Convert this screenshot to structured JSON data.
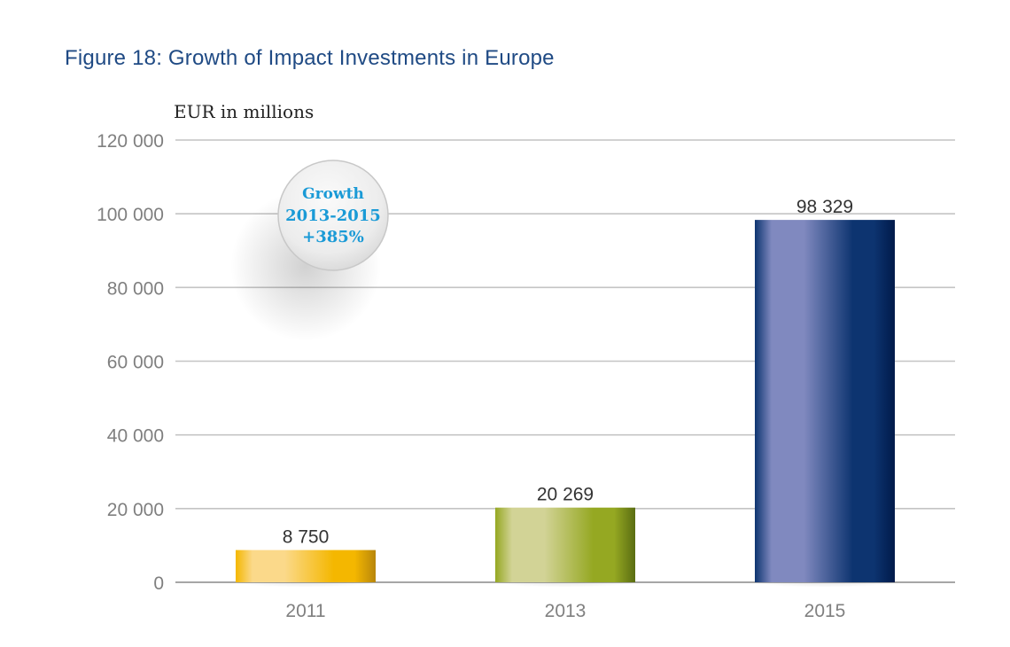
{
  "chart_data": {
    "type": "bar",
    "title": "Figure 18: Growth of Impact Investments in Europe",
    "xlabel": "",
    "ylabel": "EUR in millions",
    "categories": [
      "2011",
      "2013",
      "2015"
    ],
    "values": [
      8750,
      20269,
      98329
    ],
    "value_labels": [
      "8 750",
      "20 269",
      "98 329"
    ],
    "bar_colors": [
      {
        "dark": "#b8860b",
        "mid": "#f4b700",
        "light": "#fbd98a"
      },
      {
        "dark": "#5a6d12",
        "mid": "#95a822",
        "light": "#d2d396"
      },
      {
        "dark": "#001a4a",
        "mid": "#0d3470",
        "light": "#8089bf"
      }
    ],
    "ylim": [
      0,
      120000
    ],
    "yticks": [
      0,
      20000,
      40000,
      60000,
      80000,
      100000,
      120000
    ],
    "ytick_labels": [
      "0",
      "20 000",
      "40 000",
      "60 000",
      "80 000",
      "100 000",
      "120 000"
    ],
    "grid": true,
    "annotation": {
      "lines": [
        "Growth",
        "2013-2015",
        "+385%"
      ],
      "color": "#1a9ad6",
      "placement": "top-left"
    }
  }
}
